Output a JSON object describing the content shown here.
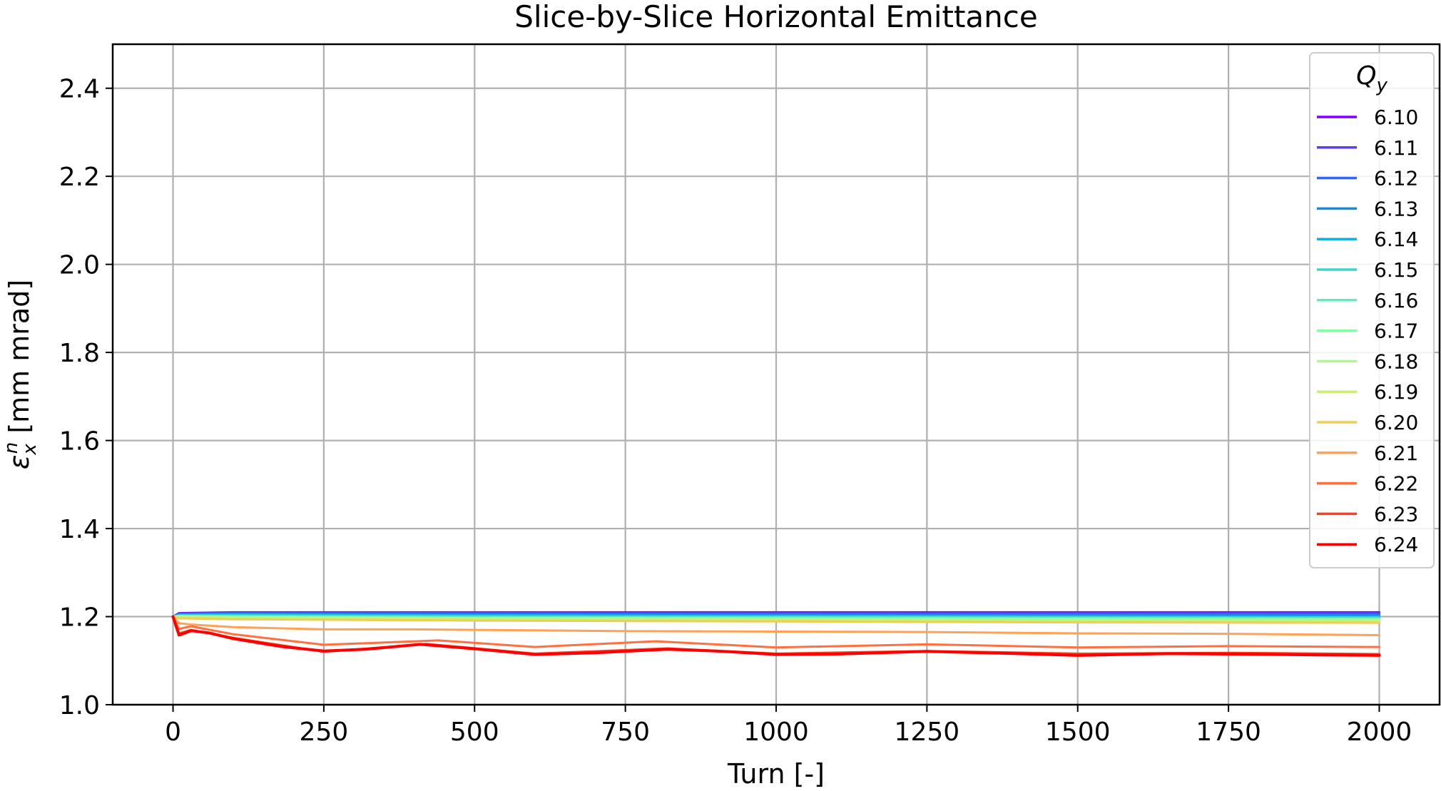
{
  "chart_data": {
    "type": "line",
    "title": "Slice-by-Slice Horizontal Emittance",
    "xlabel": "Turn [-]",
    "ylabel_symbol": "ε",
    "ylabel_sup": "n",
    "ylabel_sub": "x",
    "ylabel_unit": " [mm mrad]",
    "xlim": [
      -100,
      2100
    ],
    "ylim": [
      1.0,
      2.5
    ],
    "xticks": [
      0,
      250,
      500,
      750,
      1000,
      1250,
      1500,
      1750,
      2000
    ],
    "xtick_labels": [
      "0",
      "250",
      "500",
      "750",
      "1000",
      "1250",
      "1500",
      "1750",
      "2000"
    ],
    "yticks": [
      1.0,
      1.2,
      1.4,
      1.6,
      1.8,
      2.0,
      2.2,
      2.4
    ],
    "ytick_labels": [
      "1.0",
      "1.2",
      "1.4",
      "1.6",
      "1.8",
      "2.0",
      "2.2",
      "2.4"
    ],
    "grid": true,
    "legend": {
      "title_main": "Q",
      "title_sub": "y",
      "placement": "top-right"
    },
    "series": [
      {
        "name": "6.10",
        "color": "#8000ff",
        "x": [
          0,
          10,
          100,
          500,
          1000,
          1500,
          2000
        ],
        "y": [
          1.2,
          1.208,
          1.21,
          1.21,
          1.21,
          1.21,
          1.21
        ]
      },
      {
        "name": "6.11",
        "color": "#5b3bfb",
        "x": [
          0,
          10,
          100,
          500,
          1000,
          1500,
          2000
        ],
        "y": [
          1.2,
          1.207,
          1.209,
          1.209,
          1.208,
          1.208,
          1.208
        ]
      },
      {
        "name": "6.12",
        "color": "#3465f3",
        "x": [
          0,
          10,
          100,
          500,
          1000,
          1500,
          2000
        ],
        "y": [
          1.2,
          1.206,
          1.208,
          1.207,
          1.206,
          1.206,
          1.205
        ]
      },
      {
        "name": "6.13",
        "color": "#0e8de8",
        "x": [
          0,
          10,
          100,
          500,
          1000,
          1500,
          2000
        ],
        "y": [
          1.2,
          1.205,
          1.206,
          1.205,
          1.204,
          1.203,
          1.203
        ]
      },
      {
        "name": "6.14",
        "color": "#16b1db",
        "x": [
          0,
          10,
          100,
          500,
          1000,
          1500,
          2000
        ],
        "y": [
          1.2,
          1.204,
          1.205,
          1.203,
          1.202,
          1.201,
          1.2
        ]
      },
      {
        "name": "6.15",
        "color": "#3dd4cc",
        "x": [
          0,
          10,
          100,
          500,
          1000,
          1500,
          2000
        ],
        "y": [
          1.2,
          1.203,
          1.203,
          1.201,
          1.2,
          1.199,
          1.198
        ]
      },
      {
        "name": "6.16",
        "color": "#60ecb9",
        "x": [
          0,
          10,
          100,
          500,
          1000,
          1500,
          2000
        ],
        "y": [
          1.2,
          1.202,
          1.201,
          1.199,
          1.198,
          1.197,
          1.196
        ]
      },
      {
        "name": "6.17",
        "color": "#85fba4",
        "x": [
          0,
          10,
          100,
          500,
          1000,
          1500,
          2000
        ],
        "y": [
          1.2,
          1.201,
          1.2,
          1.197,
          1.196,
          1.195,
          1.194
        ]
      },
      {
        "name": "6.18",
        "color": "#a8fb8e",
        "x": [
          0,
          10,
          100,
          500,
          1000,
          1500,
          2000
        ],
        "y": [
          1.2,
          1.2,
          1.198,
          1.196,
          1.194,
          1.193,
          1.192
        ]
      },
      {
        "name": "6.19",
        "color": "#ccec74",
        "x": [
          0,
          10,
          100,
          500,
          1000,
          1500,
          2000
        ],
        "y": [
          1.2,
          1.199,
          1.197,
          1.194,
          1.192,
          1.19,
          1.189
        ]
      },
      {
        "name": "6.20",
        "color": "#eecd59",
        "x": [
          0,
          10,
          100,
          500,
          1000,
          1500,
          2000
        ],
        "y": [
          1.2,
          1.196,
          1.194,
          1.191,
          1.189,
          1.187,
          1.186
        ]
      },
      {
        "name": "6.21",
        "color": "#ffa256",
        "x": [
          0,
          10,
          30,
          100,
          250,
          400,
          500,
          750,
          1000,
          1250,
          1500,
          1750,
          2000
        ],
        "y": [
          1.2,
          1.185,
          1.182,
          1.176,
          1.171,
          1.171,
          1.17,
          1.167,
          1.166,
          1.165,
          1.162,
          1.161,
          1.158
        ]
      },
      {
        "name": "6.22",
        "color": "#ff7040",
        "x": [
          0,
          10,
          30,
          100,
          250,
          440,
          600,
          800,
          1000,
          1250,
          1500,
          1750,
          2000
        ],
        "y": [
          1.2,
          1.172,
          1.178,
          1.16,
          1.136,
          1.146,
          1.131,
          1.144,
          1.13,
          1.137,
          1.13,
          1.133,
          1.131
        ]
      },
      {
        "name": "6.23",
        "color": "#ff3f21",
        "x": [
          0,
          10,
          30,
          100,
          250,
          420,
          600,
          820,
          1000,
          1250,
          1500,
          1750,
          2000
        ],
        "y": [
          1.2,
          1.162,
          1.17,
          1.152,
          1.12,
          1.138,
          1.116,
          1.128,
          1.116,
          1.122,
          1.116,
          1.118,
          1.115
        ]
      },
      {
        "name": "6.24",
        "color": "#ff0000",
        "x": [
          0,
          10,
          30,
          60,
          100,
          180,
          250,
          320,
          410,
          500,
          600,
          700,
          820,
          900,
          1000,
          1100,
          1250,
          1400,
          1500,
          1650,
          1750,
          1900,
          2000
        ],
        "y": [
          1.2,
          1.158,
          1.168,
          1.163,
          1.15,
          1.132,
          1.122,
          1.126,
          1.137,
          1.127,
          1.114,
          1.118,
          1.126,
          1.122,
          1.114,
          1.115,
          1.121,
          1.116,
          1.112,
          1.116,
          1.115,
          1.113,
          1.112
        ]
      }
    ]
  }
}
